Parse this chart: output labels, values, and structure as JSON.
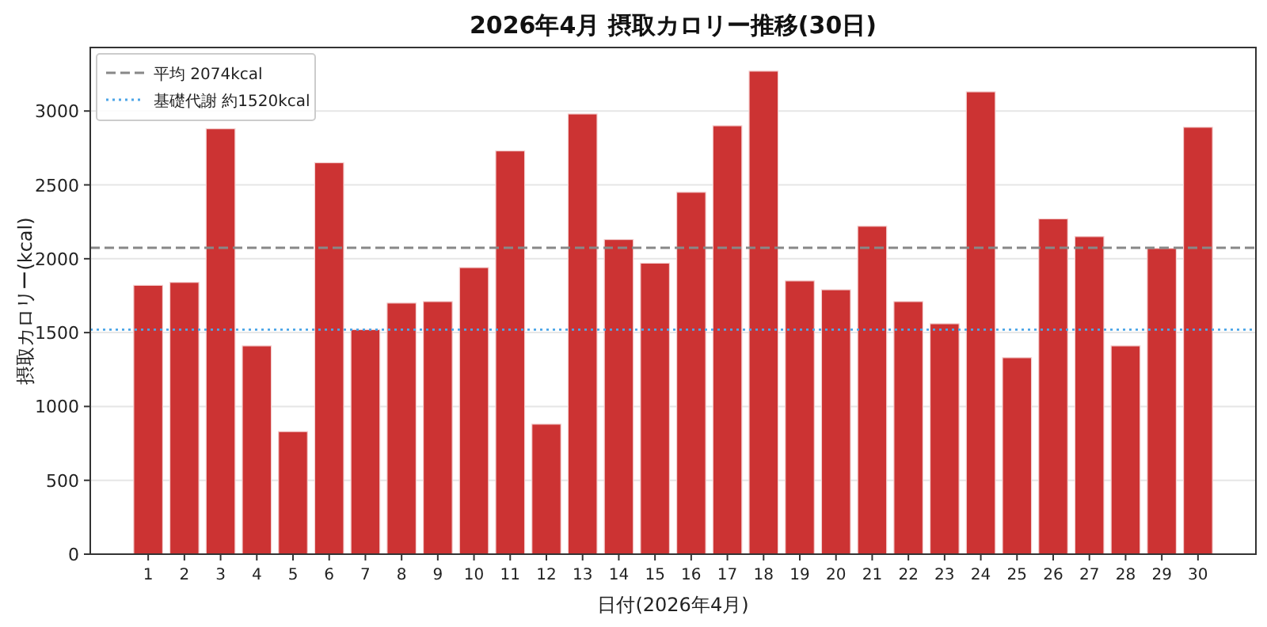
{
  "chart_data": {
    "type": "bar",
    "title": "2026年4月 摂取カロリー推移(30日)",
    "xlabel": "日付(2026年4月)",
    "ylabel": "摂取カロリー(kcal)",
    "categories": [
      "1",
      "2",
      "3",
      "4",
      "5",
      "6",
      "7",
      "8",
      "9",
      "10",
      "11",
      "12",
      "13",
      "14",
      "15",
      "16",
      "17",
      "18",
      "19",
      "20",
      "21",
      "22",
      "23",
      "24",
      "25",
      "26",
      "27",
      "28",
      "29",
      "30"
    ],
    "values": [
      1820,
      1840,
      2880,
      1410,
      830,
      2650,
      1520,
      1700,
      1710,
      1940,
      2730,
      880,
      2980,
      2130,
      1970,
      2450,
      2900,
      3270,
      1850,
      1790,
      2220,
      1710,
      1560,
      3130,
      1330,
      2270,
      2150,
      1410,
      2070,
      2890
    ],
    "color": "#cc3333",
    "ylim": [
      0,
      3430
    ],
    "yticks": [
      0,
      500,
      1000,
      1500,
      2000,
      2500,
      3000
    ],
    "grid": "y",
    "ref_lines": [
      {
        "axis": "y",
        "value": 2074,
        "label": "平均 2074kcal",
        "color": "#888888",
        "line_style": "dashed"
      },
      {
        "axis": "y",
        "value": 1520,
        "label": "基礎代謝 約1520kcal",
        "color": "#4da6e8",
        "line_style": "dotted"
      }
    ],
    "legend": "top left"
  }
}
